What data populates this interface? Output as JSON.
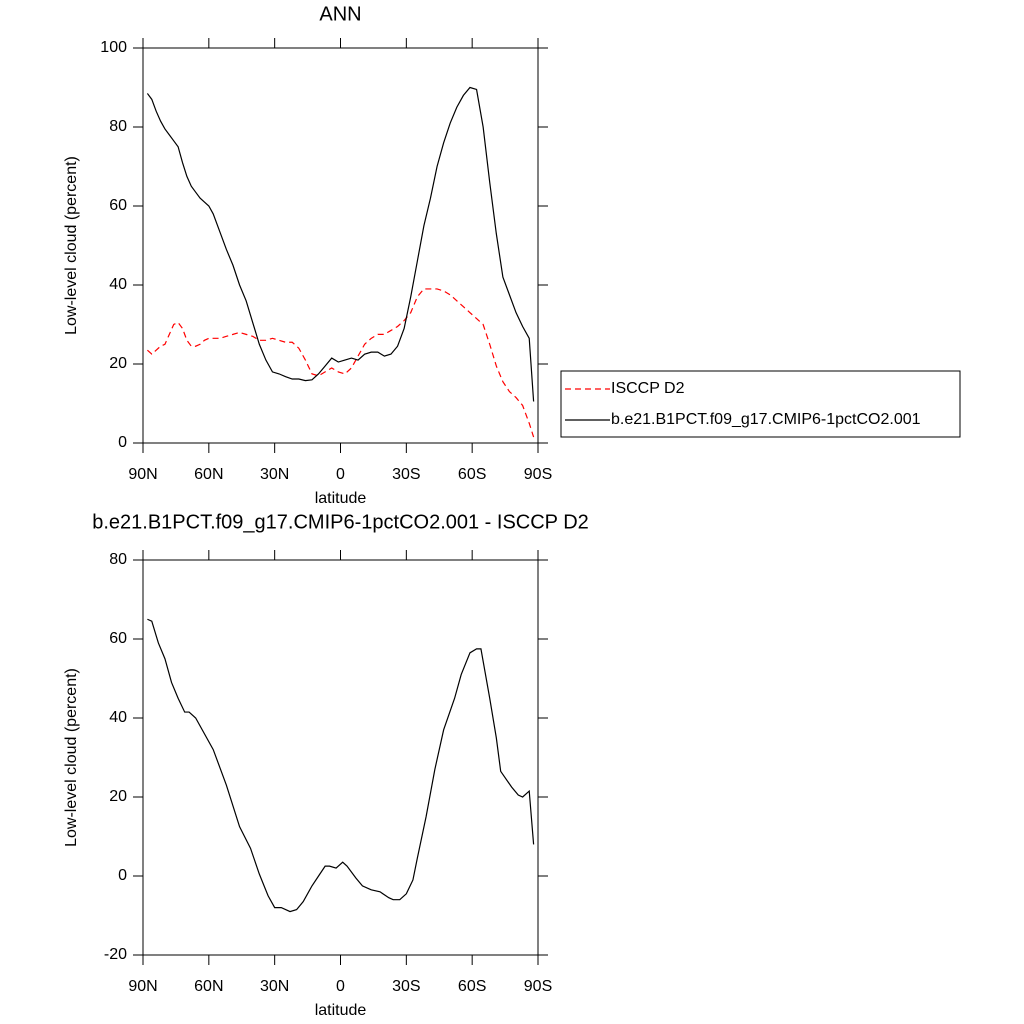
{
  "chart_data": [
    {
      "type": "line",
      "title": "ANN",
      "xlabel": "latitude",
      "ylabel": "Low-level cloud (percent)",
      "xlim": [
        90,
        -90
      ],
      "ylim": [
        0,
        100
      ],
      "xticks": [
        {
          "value": 90,
          "label": "90N"
        },
        {
          "value": 60,
          "label": "60N"
        },
        {
          "value": 30,
          "label": "30N"
        },
        0,
        {
          "value": -30,
          "label": "30S"
        },
        {
          "value": -60,
          "label": "60S"
        },
        {
          "value": -90,
          "label": "90S"
        }
      ],
      "yticks": [
        0,
        20,
        40,
        60,
        80,
        100
      ],
      "x": [
        88,
        86,
        84,
        82,
        80,
        78,
        76,
        74,
        72,
        70,
        68,
        66,
        64,
        62,
        60,
        58,
        55,
        52,
        49,
        46,
        43,
        40,
        37,
        34,
        31,
        28,
        25,
        22,
        19,
        16,
        13,
        10,
        7,
        4,
        1,
        -2,
        -5,
        -8,
        -11,
        -14,
        -17,
        -20,
        -23,
        -26,
        -29,
        -32,
        -35,
        -38,
        -41,
        -44,
        -47,
        -50,
        -53,
        -56,
        -59,
        -62,
        -65,
        -68,
        -71,
        -74,
        -77,
        -80,
        -83,
        -86,
        -88
      ],
      "series": [
        {
          "name": "ISCCP D2",
          "color": "#ff0000",
          "dash": true,
          "values": [
            23.5,
            22.5,
            23.5,
            24.5,
            25,
            27.5,
            30,
            30.5,
            29,
            26,
            24.5,
            24.5,
            25,
            26,
            26.5,
            26.5,
            26.5,
            27,
            27.5,
            28,
            27.5,
            27,
            26,
            26,
            26.5,
            26,
            25.5,
            25.5,
            24,
            21,
            17.5,
            17,
            18,
            19,
            18,
            17.5,
            19,
            22,
            25,
            26.5,
            27.5,
            27.5,
            28.5,
            29.5,
            31,
            33,
            37,
            39,
            39,
            39,
            38.5,
            37.5,
            36,
            34.5,
            33,
            31.5,
            30,
            25,
            19.5,
            15.5,
            13,
            11.5,
            9.5,
            5,
            1.5
          ]
        },
        {
          "name": "b.e21.B1PCT.f09_g17.CMIP6-1pctCO2.001",
          "color": "#000000",
          "dash": false,
          "values": [
            88.5,
            87,
            84,
            81.5,
            79.5,
            78,
            76.5,
            75,
            71,
            67.5,
            65,
            63.5,
            62,
            61,
            60,
            58,
            53.5,
            49,
            45,
            40,
            36,
            30.5,
            25,
            21,
            18,
            17.5,
            16.8,
            16.2,
            16.2,
            15.8,
            16,
            17.5,
            19.5,
            21.5,
            20.5,
            21,
            21.5,
            21,
            22.5,
            23,
            23,
            22,
            22.5,
            24.5,
            29,
            37,
            46,
            55,
            62,
            70,
            76,
            81,
            85,
            88,
            90,
            89.5,
            80,
            66,
            53,
            42,
            37.5,
            33,
            29.5,
            26.5,
            10.5
          ]
        }
      ]
    },
    {
      "type": "line",
      "title": "b.e21.B1PCT.f09_g17.CMIP6-1pctCO2.001 - ISCCP D2",
      "xlabel": "latitude",
      "ylabel": "Low-level cloud (percent)",
      "xlim": [
        90,
        -90
      ],
      "ylim": [
        -20,
        80
      ],
      "xticks": [
        {
          "value": 90,
          "label": "90N"
        },
        {
          "value": 60,
          "label": "60N"
        },
        {
          "value": 30,
          "label": "30N"
        },
        0,
        {
          "value": -30,
          "label": "30S"
        },
        {
          "value": -60,
          "label": "60S"
        },
        {
          "value": -90,
          "label": "90S"
        }
      ],
      "yticks": [
        -20,
        0,
        20,
        40,
        60,
        80
      ],
      "x": [
        88,
        86,
        83,
        80,
        77,
        74,
        71,
        69,
        66,
        58,
        52,
        46,
        41,
        37,
        33,
        30,
        27,
        23,
        20,
        17,
        13,
        10,
        7,
        5,
        2,
        -1,
        -3,
        -7,
        -10,
        -14,
        -18,
        -22,
        -24,
        -27,
        -30,
        -33,
        -35,
        -39,
        -43,
        -47,
        -52,
        -55,
        -59,
        -62,
        -64,
        -68,
        -71,
        -73,
        -78,
        -81,
        -83,
        -86,
        -88
      ],
      "series": [
        {
          "color": "#000000",
          "dash": false,
          "values": [
            65,
            64.5,
            59,
            55,
            49,
            45,
            41.5,
            41.5,
            40,
            32,
            23,
            12.5,
            7,
            0.5,
            -5,
            -8,
            -8,
            -9,
            -8.5,
            -6.5,
            -2.5,
            0,
            2.5,
            2.5,
            2,
            3.5,
            2.5,
            -0.5,
            -2.5,
            -3.5,
            -4,
            -5.5,
            -6,
            -6,
            -4.5,
            -1,
            4.5,
            15,
            27,
            37,
            45,
            51,
            56.5,
            57.5,
            57.5,
            45,
            35,
            26.5,
            22.5,
            20.5,
            20,
            21.5,
            8
          ]
        }
      ]
    }
  ]
}
